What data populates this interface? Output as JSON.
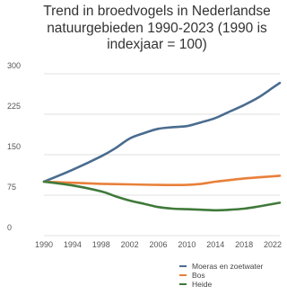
{
  "chart_data": {
    "type": "line",
    "title_lines": [
      "Trend in broedvogels in Nederlandse",
      "natuurgebieden 1990-2023 (1990 is",
      "indexjaar = 100)"
    ],
    "xlabel": "",
    "ylabel": "",
    "xlim": [
      1990,
      2023
    ],
    "ylim": [
      0,
      300
    ],
    "x_ticks": [
      1990,
      1994,
      1998,
      2002,
      2006,
      2010,
      2014,
      2018,
      2022
    ],
    "y_ticks": [
      0,
      75,
      150,
      225,
      300
    ],
    "grid": {
      "horizontal": true,
      "vertical": false
    },
    "legend_position": "bottom-right",
    "series": [
      {
        "name": "Moeras en zoetwater",
        "color": "#4a6c8f",
        "points": [
          [
            1990,
            100
          ],
          [
            1994,
            122
          ],
          [
            1998,
            147
          ],
          [
            2000,
            162
          ],
          [
            2002,
            180
          ],
          [
            2004,
            190
          ],
          [
            2006,
            198
          ],
          [
            2008,
            201
          ],
          [
            2010,
            203
          ],
          [
            2012,
            210
          ],
          [
            2014,
            218
          ],
          [
            2016,
            230
          ],
          [
            2018,
            242
          ],
          [
            2020,
            256
          ],
          [
            2022,
            274
          ],
          [
            2023,
            283
          ]
        ]
      },
      {
        "name": "Bos",
        "color": "#e8803a",
        "points": [
          [
            1990,
            100
          ],
          [
            1994,
            98
          ],
          [
            1998,
            96
          ],
          [
            2002,
            95
          ],
          [
            2006,
            94
          ],
          [
            2010,
            94
          ],
          [
            2012,
            96
          ],
          [
            2014,
            100
          ],
          [
            2016,
            103
          ],
          [
            2018,
            106
          ],
          [
            2020,
            108
          ],
          [
            2023,
            111
          ]
        ]
      },
      {
        "name": "Heide",
        "color": "#3f7a3a",
        "points": [
          [
            1990,
            100
          ],
          [
            1994,
            93
          ],
          [
            1998,
            82
          ],
          [
            2000,
            73
          ],
          [
            2002,
            65
          ],
          [
            2004,
            59
          ],
          [
            2006,
            53
          ],
          [
            2008,
            50
          ],
          [
            2010,
            49
          ],
          [
            2012,
            48
          ],
          [
            2014,
            47
          ],
          [
            2016,
            48
          ],
          [
            2018,
            50
          ],
          [
            2020,
            54
          ],
          [
            2023,
            61
          ]
        ]
      }
    ]
  }
}
